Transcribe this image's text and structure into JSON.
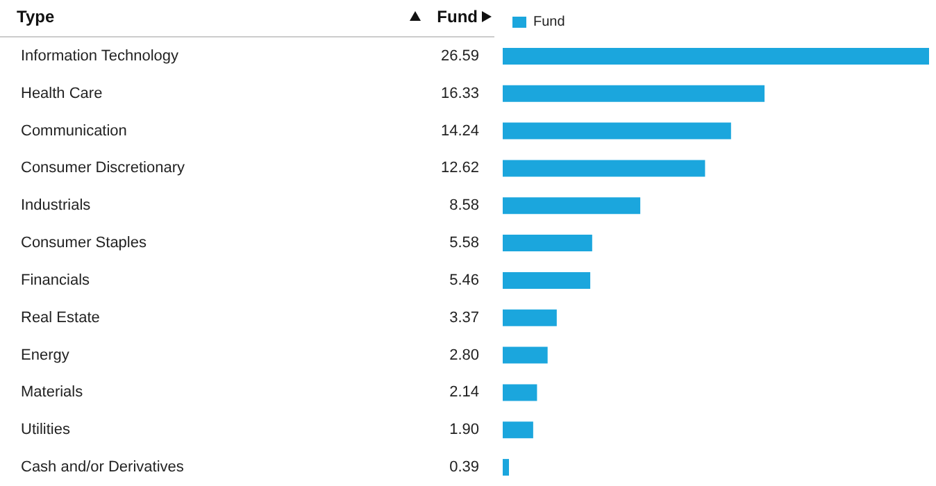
{
  "chart_data": {
    "type": "bar",
    "orientation": "horizontal",
    "ylabel": "Type",
    "xlabel": "Fund",
    "legend": "top left",
    "categories": [
      "Information Technology",
      "Health Care",
      "Communication",
      "Consumer Discretionary",
      "Industrials",
      "Consumer Staples",
      "Financials",
      "Real Estate",
      "Energy",
      "Materials",
      "Utilities",
      "Cash and/or Derivatives"
    ],
    "series": [
      {
        "name": "Fund",
        "color": "#1ba6dd",
        "values": [
          26.59,
          16.33,
          14.24,
          12.62,
          8.58,
          5.58,
          5.46,
          3.37,
          2.8,
          2.14,
          1.9,
          0.39
        ],
        "value_labels": [
          "26.59",
          "16.33",
          "14.24",
          "12.62",
          "8.58",
          "5.58",
          "5.46",
          "3.37",
          "2.80",
          "2.14",
          "1.90",
          "0.39"
        ]
      }
    ]
  }
}
